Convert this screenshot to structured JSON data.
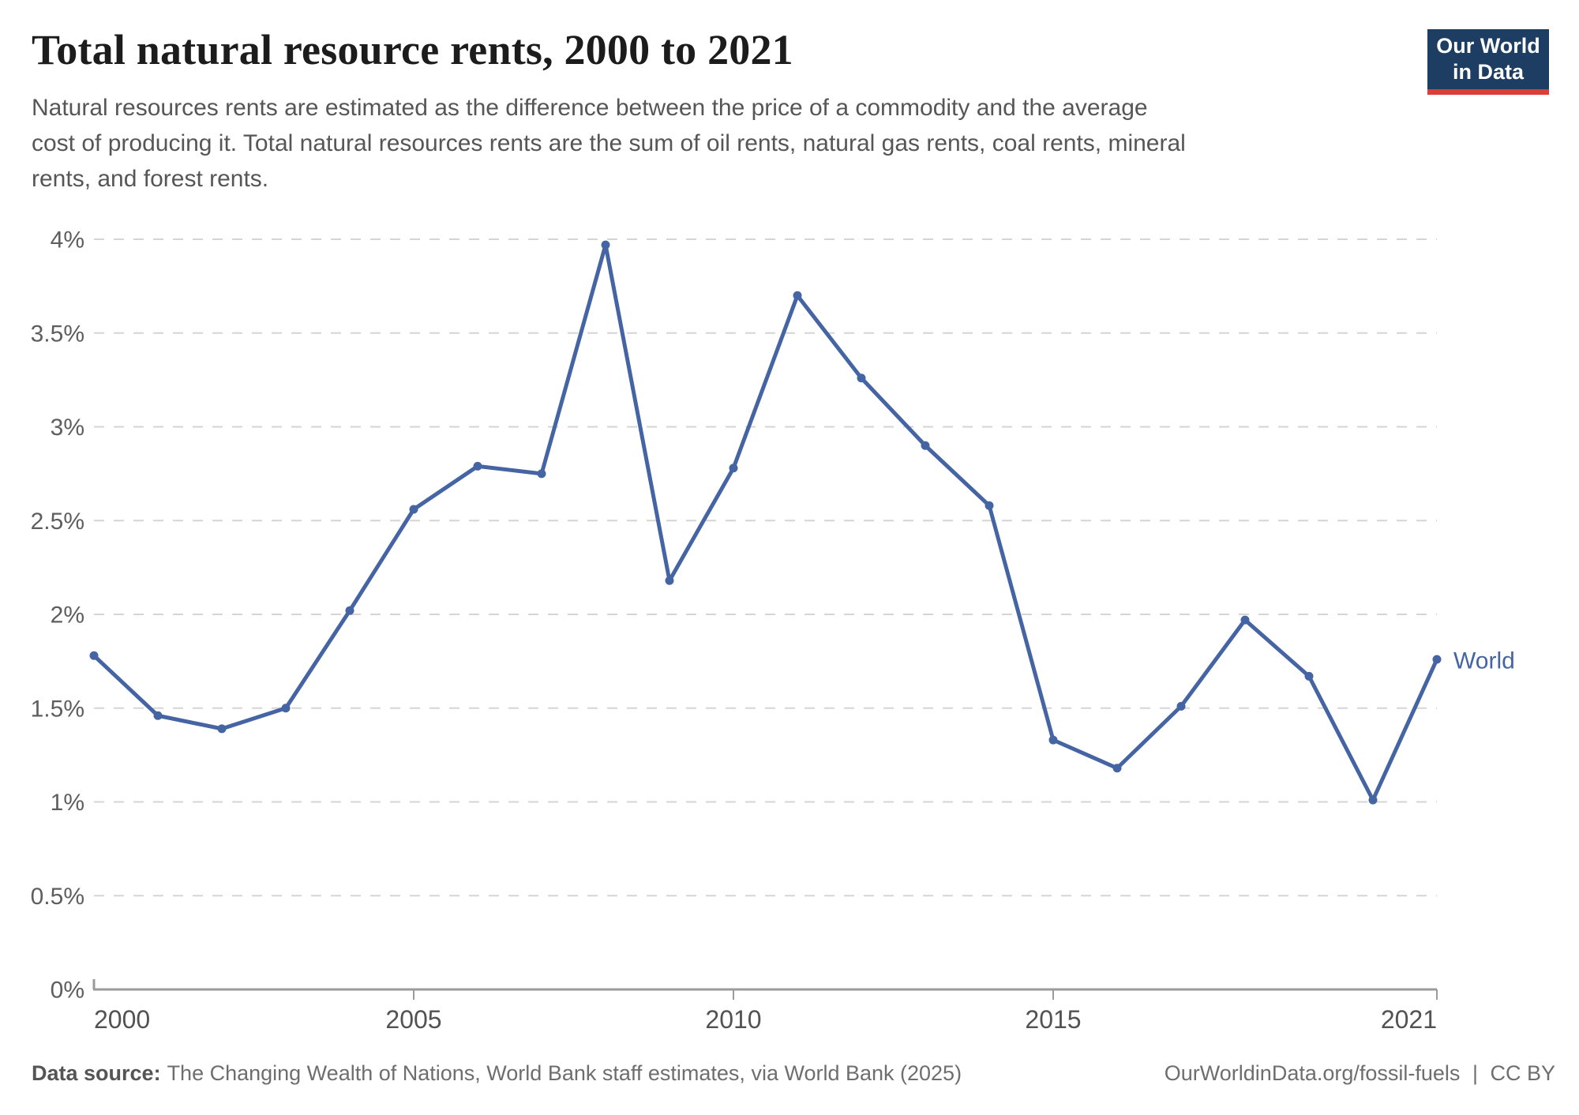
{
  "header": {
    "title": "Total natural resource rents, 2000 to 2021",
    "subtitle": "Natural resources rents are estimated as the difference between the price of a commodity and the average\ncost of producing it. Total natural resources rents are the sum of oil rents, natural gas rents, coal rents, mineral\nrents, and forest rents.",
    "logo": {
      "line1": "Our World",
      "line2": "in Data"
    }
  },
  "chart_data": {
    "type": "line",
    "title": "Total natural resource rents, 2000 to 2021",
    "xlabel": "",
    "ylabel": "",
    "unit": "%",
    "x": [
      2000,
      2001,
      2002,
      2003,
      2004,
      2005,
      2006,
      2007,
      2008,
      2009,
      2010,
      2011,
      2012,
      2013,
      2014,
      2015,
      2016,
      2017,
      2018,
      2019,
      2020,
      2021
    ],
    "series": [
      {
        "name": "World",
        "values": [
          1.78,
          1.46,
          1.39,
          1.5,
          2.02,
          2.56,
          2.79,
          2.75,
          3.97,
          2.18,
          2.78,
          3.7,
          3.26,
          2.9,
          2.58,
          1.33,
          1.18,
          1.51,
          1.97,
          1.67,
          1.01,
          1.76
        ]
      }
    ],
    "ylim": [
      0,
      4
    ],
    "ytick_values": [
      0,
      0.5,
      1,
      1.5,
      2,
      2.5,
      3,
      3.5,
      4
    ],
    "ytick_labels": [
      "0%",
      "0.5%",
      "1%",
      "1.5%",
      "2%",
      "2.5%",
      "3%",
      "3.5%",
      "4%"
    ],
    "xtick_values": [
      2000,
      2005,
      2010,
      2015,
      2021
    ],
    "grid": "horizontal-dashed",
    "legend_position": "end-of-line"
  },
  "colors": {
    "line": "#4464a3",
    "grid": "#d5d5d5",
    "axis": "#9b9b9b",
    "y_tick_text": "#5e5e5e",
    "x_tick_text": "#525252",
    "title_text": "#1c1c1c",
    "subtitle_text": "#565656",
    "footer_text": "#6e6e6e",
    "logo_bg": "#1d3d63",
    "logo_red": "#dc3e37"
  },
  "footer": {
    "source_label": "Data source:",
    "source_text": "The Changing Wealth of Nations, World Bank staff estimates, via World Bank (2025)",
    "url": "OurWorldinData.org/fossil-fuels",
    "separator": "|",
    "license": "CC BY"
  }
}
